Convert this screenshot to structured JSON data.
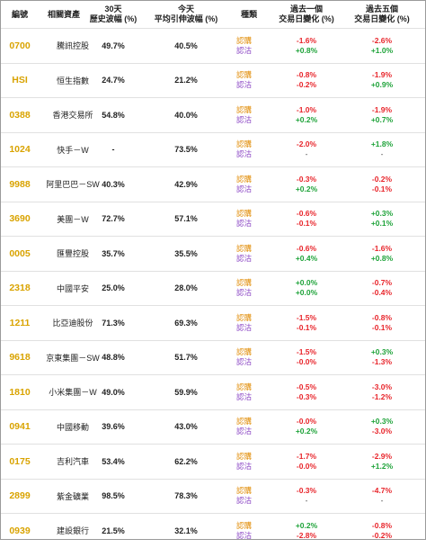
{
  "headers": {
    "code": "編號",
    "name": "相關資產",
    "hv_line1": "30天",
    "hv_line2": "歷史波幅 (%)",
    "iv_line1": "今天",
    "iv_line2": "平均引伸波幅 (%)",
    "type": "種類",
    "d1_line1": "過去一個",
    "d1_line2": "交易日變化 (%)",
    "d5_line1": "過去五個",
    "d5_line2": "交易日變化 (%)"
  },
  "labels": {
    "call": "認購",
    "put": "認沽"
  },
  "colors": {
    "code": "#d9a300",
    "call": "#e08a00",
    "put": "#8a44c4",
    "negative": "#e8252b",
    "positive": "#1fa33a"
  },
  "rows": [
    {
      "code": "0700",
      "name": "騰訊控股",
      "hv": "49.7%",
      "iv": "40.5%",
      "d1_call": "-1.6%",
      "d1_put": "+0.8%",
      "d5_call": "-2.6%",
      "d5_put": "+1.0%"
    },
    {
      "code": "HSI",
      "name": "恒生指數",
      "hv": "24.7%",
      "iv": "21.2%",
      "d1_call": "-0.8%",
      "d1_put": "-0.2%",
      "d5_call": "-1.9%",
      "d5_put": "+0.9%"
    },
    {
      "code": "0388",
      "name": "香港交易所",
      "hv": "54.8%",
      "iv": "40.0%",
      "d1_call": "-1.0%",
      "d1_put": "+0.2%",
      "d5_call": "-1.9%",
      "d5_put": "+0.7%"
    },
    {
      "code": "1024",
      "name": "快手－W",
      "hv": "-",
      "iv": "73.5%",
      "d1_call": "-2.0%",
      "d1_put": "-",
      "d5_call": "+1.8%",
      "d5_put": "-"
    },
    {
      "code": "9988",
      "name": "阿里巴巴－SW",
      "hv": "40.3%",
      "iv": "42.9%",
      "d1_call": "-0.3%",
      "d1_put": "+0.2%",
      "d5_call": "-0.2%",
      "d5_put": "-0.1%"
    },
    {
      "code": "3690",
      "name": "美團－W",
      "hv": "72.7%",
      "iv": "57.1%",
      "d1_call": "-0.6%",
      "d1_put": "-0.1%",
      "d5_call": "+0.3%",
      "d5_put": "+0.1%"
    },
    {
      "code": "0005",
      "name": "匯豐控股",
      "hv": "35.7%",
      "iv": "35.5%",
      "d1_call": "-0.6%",
      "d1_put": "+0.4%",
      "d5_call": "-1.6%",
      "d5_put": "+0.8%"
    },
    {
      "code": "2318",
      "name": "中國平安",
      "hv": "25.0%",
      "iv": "28.0%",
      "d1_call": "+0.0%",
      "d1_put": "+0.0%",
      "d5_call": "-0.7%",
      "d5_put": "-0.4%"
    },
    {
      "code": "1211",
      "name": "比亞迪股份",
      "hv": "71.3%",
      "iv": "69.3%",
      "d1_call": "-1.5%",
      "d1_put": "-0.1%",
      "d5_call": "-0.8%",
      "d5_put": "-0.1%"
    },
    {
      "code": "9618",
      "name": "京東集團－SW",
      "hv": "48.8%",
      "iv": "51.7%",
      "d1_call": "-1.5%",
      "d1_put": "-0.0%",
      "d5_call": "+0.3%",
      "d5_put": "-1.3%"
    },
    {
      "code": "1810",
      "name": "小米集團－W",
      "hv": "49.0%",
      "iv": "59.9%",
      "d1_call": "-0.5%",
      "d1_put": "-0.3%",
      "d5_call": "-3.0%",
      "d5_put": "-1.2%"
    },
    {
      "code": "0941",
      "name": "中國移動",
      "hv": "39.6%",
      "iv": "43.0%",
      "d1_call": "-0.0%",
      "d1_put": "+0.2%",
      "d5_call": "+0.3%",
      "d5_put": "-3.0%"
    },
    {
      "code": "0175",
      "name": "吉利汽車",
      "hv": "53.4%",
      "iv": "62.2%",
      "d1_call": "-1.7%",
      "d1_put": "-0.0%",
      "d5_call": "-2.9%",
      "d5_put": "+1.2%"
    },
    {
      "code": "2899",
      "name": "紫金礦業",
      "hv": "98.5%",
      "iv": "78.3%",
      "d1_call": "-0.3%",
      "d1_put": "-",
      "d5_call": "-4.7%",
      "d5_put": "-"
    },
    {
      "code": "0939",
      "name": "建設銀行",
      "hv": "21.5%",
      "iv": "32.1%",
      "d1_call": "+0.2%",
      "d1_put": "-2.8%",
      "d5_call": "-0.8%",
      "d5_put": "-0.2%"
    }
  ]
}
